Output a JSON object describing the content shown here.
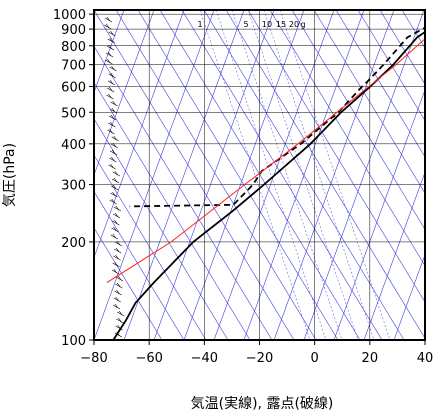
{
  "chart_data": {
    "type": "line",
    "subtype": "skew-t log-p sounding",
    "xlabel": "気温(実線), 露点(破線)",
    "ylabel": "気圧(hPa)",
    "xlim": [
      -80,
      40
    ],
    "ylim": [
      1030,
      100
    ],
    "yscale": "log",
    "x_ticks": [
      "−80",
      "−60",
      "−40",
      "−20",
      "0",
      "20",
      "40"
    ],
    "y_ticks": [
      {
        "p": 100,
        "label": "100"
      },
      {
        "p": 200,
        "label": "200"
      },
      {
        "p": 300,
        "label": "300"
      },
      {
        "p": 400,
        "label": "400"
      },
      {
        "p": 500,
        "label": "500"
      },
      {
        "p": 600,
        "label": "600"
      },
      {
        "p": 700,
        "label": "700"
      },
      {
        "p": 800,
        "label": "800"
      },
      {
        "p": 900,
        "label": "900"
      },
      {
        "p": 1000,
        "label": "1000"
      }
    ],
    "mixing_ratio_labels": [
      "1",
      "5",
      "10",
      "15",
      "20",
      "g"
    ],
    "colors": {
      "temperature": "#000000",
      "dewpoint": "#000000",
      "parcel": "#ff2020",
      "background": "#4040e0",
      "grid": "#000000"
    },
    "series": [
      {
        "role": "temperature",
        "style": "solid",
        "points": [
          {
            "p": 1000,
            "t": 23.0
          },
          {
            "p": 925,
            "t": 18.0
          },
          {
            "p": 850,
            "t": 12.5
          },
          {
            "p": 700,
            "t": 6.0
          },
          {
            "p": 600,
            "t": -0.5
          },
          {
            "p": 500,
            "t": -9.0
          },
          {
            "p": 400,
            "t": -17.5
          },
          {
            "p": 300,
            "t": -31.0
          },
          {
            "p": 250,
            "t": -40.0
          },
          {
            "p": 200,
            "t": -52.0
          },
          {
            "p": 150,
            "t": -63.0
          },
          {
            "p": 130,
            "t": -68.0
          },
          {
            "p": 115,
            "t": -70.0
          },
          {
            "p": 100,
            "t": -73.0
          }
        ]
      },
      {
        "role": "dewpoint",
        "style": "dashed",
        "points": [
          {
            "p": 1000,
            "t": 20.5
          },
          {
            "p": 925,
            "t": 16.0
          },
          {
            "p": 850,
            "t": 9.0
          },
          {
            "p": 700,
            "t": 2.5
          },
          {
            "p": 620,
            "t": -2.0
          },
          {
            "p": 600,
            "t": -3.5
          },
          {
            "p": 500,
            "t": -10.0
          },
          {
            "p": 400,
            "t": -21.0
          },
          {
            "p": 330,
            "t": -33.0
          },
          {
            "p": 300,
            "t": -35.0
          },
          {
            "p": 260,
            "t": -40.5
          },
          {
            "p": 257,
            "t": -78.0
          }
        ]
      },
      {
        "role": "parcel",
        "style": "solid",
        "points": [
          {
            "p": 1000,
            "t": 25.0
          },
          {
            "p": 850,
            "t": 16.0
          },
          {
            "p": 700,
            "t": 7.0
          },
          {
            "p": 600,
            "t": -1.0
          },
          {
            "p": 500,
            "t": -10.5
          },
          {
            "p": 400,
            "t": -22.0
          },
          {
            "p": 300,
            "t": -38.0
          },
          {
            "p": 200,
            "t": -60.0
          },
          {
            "p": 150,
            "t": -80.0
          }
        ]
      }
    ]
  }
}
